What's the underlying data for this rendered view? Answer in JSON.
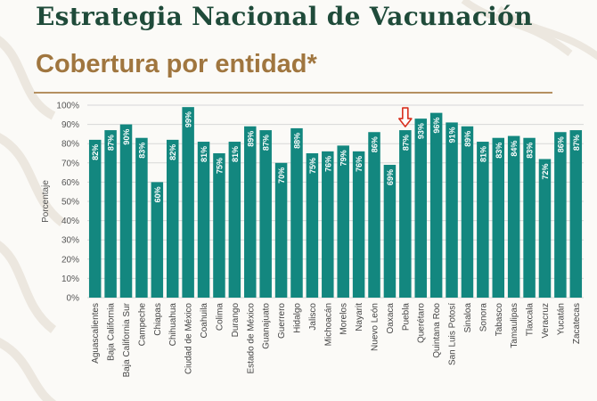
{
  "header": {
    "title": "Estrategia Nacional de Vacunación",
    "subtitle": "Cobertura por entidad*"
  },
  "highlight_category": "Puebla",
  "colors": {
    "bar": "#13877f",
    "title": "#1f4b3a",
    "subtitle": "#a0763f",
    "rule": "#b59061",
    "marker": "#d8301f",
    "grid": "#d7d7d7"
  },
  "chart_data": {
    "type": "bar",
    "title": "Cobertura por entidad*",
    "xlabel": "",
    "ylabel": "Porcentaje",
    "ylim": [
      0,
      100
    ],
    "yticks": [
      "0%",
      "10%",
      "20%",
      "30%",
      "40%",
      "50%",
      "60%",
      "70%",
      "80%",
      "90%",
      "100%"
    ],
    "grid": true,
    "categories": [
      "Aguascalientes",
      "Baja California",
      "Baja California Sur",
      "Campeche",
      "Chiapas",
      "Chihuahua",
      "Ciudad de México",
      "Coahuila",
      "Colima",
      "Durango",
      "Estado de México",
      "Guanajuato",
      "Guerrero",
      "Hidalgo",
      "Jalisco",
      "Michoacán",
      "Morelos",
      "Nayarit",
      "Nuevo León",
      "Oaxaca",
      "Puebla",
      "Querétaro",
      "Quintana Roo",
      "San Luis Potosí",
      "Sinaloa",
      "Sonora",
      "Tabasco",
      "Tamaulipas",
      "Tlaxcala",
      "Veracruz",
      "Yucatán",
      "Zacatecas"
    ],
    "values": [
      82,
      87,
      90,
      83,
      60,
      82,
      99,
      81,
      75,
      81,
      89,
      87,
      70,
      88,
      75,
      76,
      79,
      76,
      86,
      69,
      87,
      93,
      96,
      91,
      89,
      81,
      83,
      84,
      83,
      72,
      86,
      87
    ],
    "labels": [
      "82%",
      "87%",
      "90%",
      "83%",
      "60%",
      "82%",
      "99%",
      "81%",
      "75%",
      "81%",
      "89%",
      "87%",
      "70%",
      "88%",
      "75%",
      "76%",
      "79%",
      "76%",
      "86%",
      "69%",
      "87%",
      "93%",
      "96%",
      "91%",
      "89%",
      "81%",
      "83%",
      "84%",
      "83%",
      "72%",
      "86%",
      "87%"
    ]
  }
}
